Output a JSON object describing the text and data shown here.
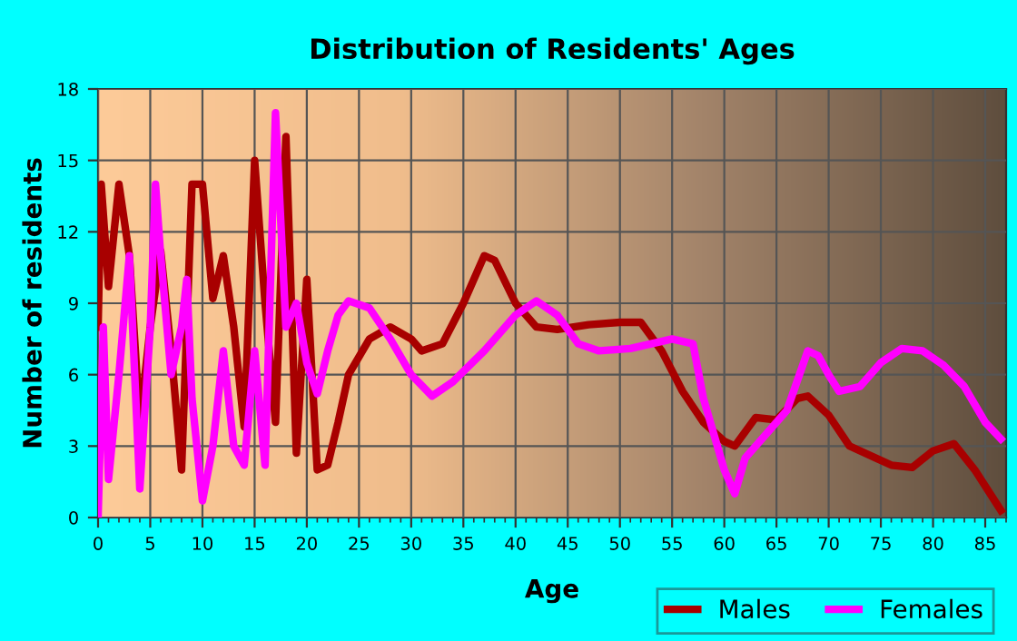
{
  "chart_data": {
    "type": "line",
    "title": "Distribution of Residents' Ages",
    "xlabel": "Age",
    "ylabel": "Number of residents",
    "xlim": [
      0,
      87
    ],
    "ylim": [
      0,
      18
    ],
    "xticks": [
      0,
      5,
      10,
      15,
      20,
      25,
      30,
      35,
      40,
      45,
      50,
      55,
      60,
      65,
      70,
      75,
      80,
      85
    ],
    "yticks": [
      0,
      3,
      6,
      9,
      12,
      15,
      18
    ],
    "grid": true,
    "legend": "bottom right",
    "marker": "none",
    "line_style": "solid",
    "series": [
      {
        "name": "Males",
        "color": "#a80000",
        "x": [
          0,
          0.3,
          1,
          2,
          3,
          4,
          5,
          6,
          7,
          8,
          9,
          10,
          11,
          12,
          13,
          14,
          15,
          16,
          17,
          18,
          19,
          20,
          21,
          22,
          23,
          24,
          26,
          28,
          30,
          31,
          33,
          35,
          37,
          38,
          40,
          42,
          44,
          47,
          50,
          52,
          54,
          56,
          58,
          60,
          61,
          63,
          65,
          67,
          68,
          70,
          72,
          76,
          78,
          80,
          82,
          84,
          86.5
        ],
        "values": [
          8,
          14,
          9.7,
          14,
          11,
          4,
          8,
          11.2,
          7,
          2,
          14,
          14,
          9.2,
          11,
          8,
          3.8,
          15,
          9,
          4,
          16,
          2.7,
          10,
          2,
          2.2,
          4,
          6,
          7.5,
          8,
          7.5,
          7,
          7.3,
          9,
          11,
          10.8,
          9,
          8,
          7.9,
          8.1,
          8.2,
          8.2,
          7,
          5.3,
          4,
          3.2,
          3,
          4.2,
          4.1,
          5,
          5.1,
          4.3,
          3,
          2.2,
          2.1,
          2.8,
          3.1,
          2,
          0.3
        ]
      },
      {
        "name": "Females",
        "color": "#ff00ff",
        "x": [
          0,
          0.5,
          1,
          2,
          3,
          4,
          5,
          5.5,
          6,
          7,
          8,
          8.5,
          9,
          10,
          11,
          12,
          13,
          14,
          15,
          16,
          17,
          18,
          19,
          20,
          21,
          22,
          23,
          24,
          26,
          28,
          30,
          32,
          34,
          37,
          40,
          42,
          44,
          46,
          48,
          51,
          53,
          55,
          57,
          58,
          60,
          61,
          62,
          64,
          66,
          68,
          69,
          70,
          71,
          73,
          75,
          77,
          79,
          81,
          83,
          85,
          86.5
        ],
        "values": [
          0,
          8,
          1.6,
          6,
          11,
          1.2,
          8,
          14,
          11,
          6,
          8,
          10,
          5,
          0.7,
          3,
          7,
          3,
          2.2,
          7,
          2.2,
          17,
          8,
          9,
          6.5,
          5.2,
          7,
          8.5,
          9.1,
          8.8,
          7.5,
          6,
          5.1,
          5.7,
          7,
          8.5,
          9.1,
          8.5,
          7.3,
          7,
          7.1,
          7.3,
          7.5,
          7.3,
          5,
          2,
          1,
          2.5,
          3.5,
          4.5,
          7,
          6.8,
          6,
          5.3,
          5.5,
          6.5,
          7.1,
          7,
          6.4,
          5.5,
          4,
          3.3
        ]
      }
    ]
  }
}
